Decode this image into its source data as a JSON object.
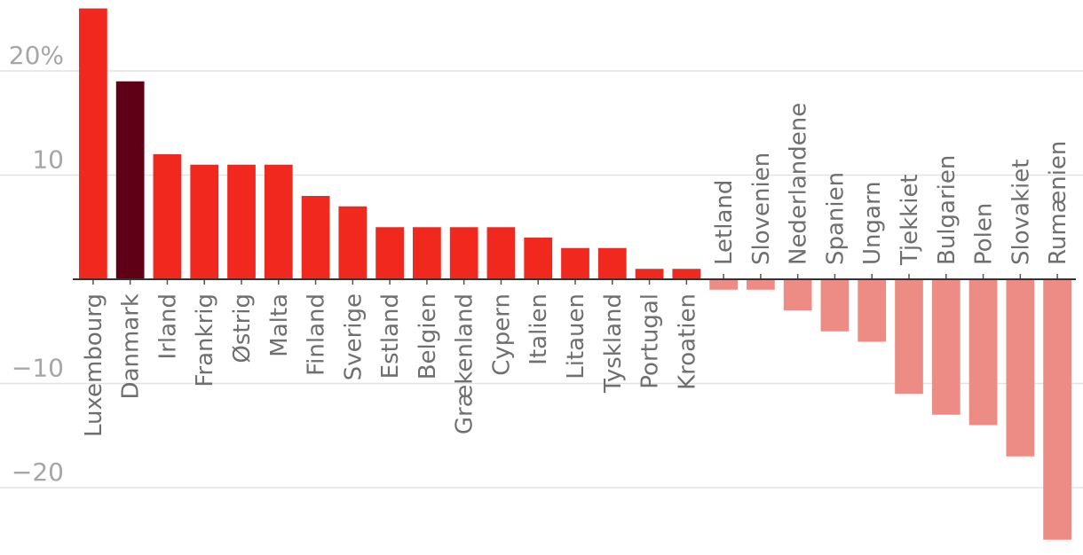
{
  "chart_data": {
    "type": "bar",
    "title": "",
    "xlabel": "",
    "ylabel": "",
    "ylim": [
      -25,
      26
    ],
    "y_ticks": [
      {
        "value": 20,
        "label": "20%"
      },
      {
        "value": 10,
        "label": "10"
      },
      {
        "value": -10,
        "label": "−10"
      },
      {
        "value": -20,
        "label": "−20"
      }
    ],
    "grid": true,
    "categories": [
      "Luxembourg",
      "Danmark",
      "Irland",
      "Frankrig",
      "Østrig",
      "Malta",
      "Finland",
      "Sverige",
      "Estland",
      "Belgien",
      "Grækenland",
      "Cypern",
      "Italien",
      "Litauen",
      "Tyskland",
      "Portugal",
      "Kroatien",
      "Letland",
      "Slovenien",
      "Nederlandene",
      "Spanien",
      "Ungarn",
      "Tjekkiet",
      "Bulgarien",
      "Polen",
      "Slovakiet",
      "Rumænien"
    ],
    "values": [
      26,
      19,
      12,
      11,
      11,
      11,
      8,
      7,
      5,
      5,
      5,
      5,
      4,
      3,
      3,
      1,
      1,
      -1,
      -1,
      -3,
      -5,
      -6,
      -11,
      -13,
      -14,
      -17,
      -25
    ],
    "colors": {
      "positive": "#f1281e",
      "highlight": "#5f0016",
      "negative": "#ed8c84"
    },
    "highlight_category": "Danmark"
  }
}
